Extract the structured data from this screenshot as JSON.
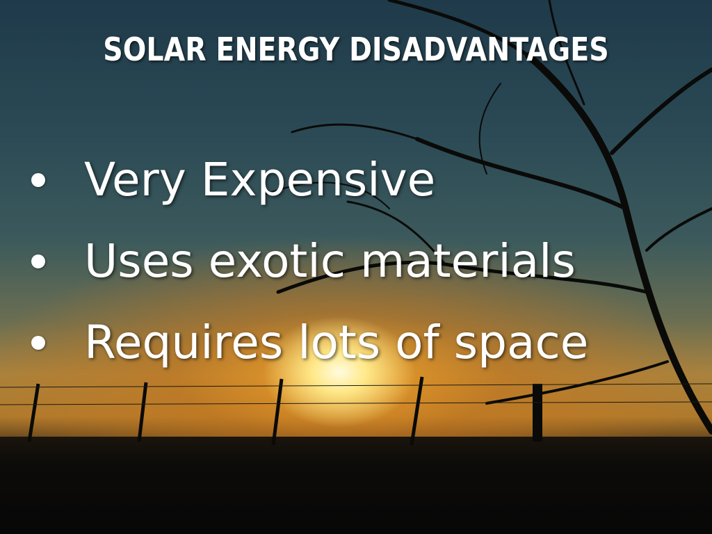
{
  "slide": {
    "title": "SOLAR ENERGY DISADVANTAGES",
    "bullets": [
      "Very Expensive",
      "Uses exotic materials",
      "Requires lots of space"
    ]
  },
  "colors": {
    "sky_top": "#1f3a4a",
    "sun_glow": "#f0a028",
    "text": "#ffffff"
  }
}
